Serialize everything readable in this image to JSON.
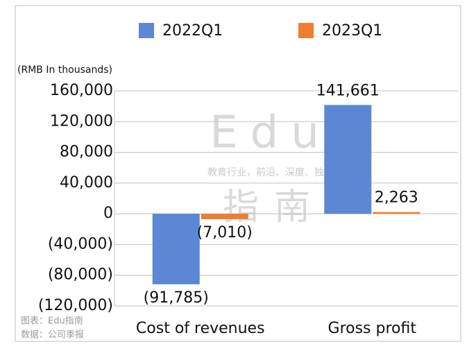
{
  "chart_data": {
    "type": "bar",
    "unit_label": "(RMB In thousands)",
    "categories": [
      "Cost of revenues",
      "Gross profit"
    ],
    "series": [
      {
        "name": "2022Q1",
        "color": "#5b87d4",
        "values": [
          -91785,
          141661
        ],
        "value_labels": [
          "(91,785)",
          "141,661"
        ]
      },
      {
        "name": "2023Q1",
        "color": "#ed7d31",
        "values": [
          -7010,
          2263
        ],
        "value_labels": [
          "(7,010)",
          "2,263"
        ]
      }
    ],
    "ylim": [
      -120000,
      160000
    ],
    "yticks": [
      {
        "value": -120000,
        "label": "(120,000)"
      },
      {
        "value": -80000,
        "label": "(80,000)"
      },
      {
        "value": -40000,
        "label": "(40,000)"
      },
      0,
      {
        "value": 40000,
        "label": "40,000"
      },
      {
        "value": 80000,
        "label": "80,000"
      },
      {
        "value": 120000,
        "label": "120,000"
      },
      {
        "value": 160000,
        "label": "160,000"
      }
    ],
    "grid": true,
    "legend": "top",
    "watermark": {
      "brand": "Edu",
      "slogan": "教育行业，前沿、深度、独家",
      "name": "指南"
    },
    "notes": [
      "图表：Edu指南",
      "数据：公司季报"
    ]
  }
}
